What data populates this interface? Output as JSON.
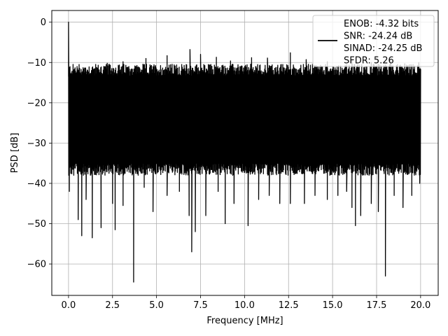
{
  "chart_data": {
    "type": "line",
    "title": "",
    "xlabel": "Frequency [MHz]",
    "ylabel": "PSD [dB]",
    "xlim": [
      -0.95,
      21.0
    ],
    "ylim": [
      -67.8,
      2.9
    ],
    "xticks": [
      0.0,
      2.5,
      5.0,
      7.5,
      10.0,
      12.5,
      15.0,
      17.5,
      20.0
    ],
    "xtick_labels": [
      "0.0",
      "2.5",
      "5.0",
      "7.5",
      "10.0",
      "12.5",
      "15.0",
      "17.5",
      "20.0"
    ],
    "yticks": [
      0,
      -10,
      -20,
      -30,
      -40,
      -50,
      -60
    ],
    "ytick_labels": [
      "0",
      "−10",
      "−20",
      "−30",
      "−40",
      "−50",
      "−60"
    ],
    "grid": true,
    "legend_location": "upper right",
    "line_color": "#000000",
    "series": [
      {
        "legend_lines": [
          "ENOB: -4.32 bits",
          "SNR: -24.24 dB",
          "SINAD: -24.25 dB",
          "SFDR: 5.26"
        ],
        "peak": {
          "x": 0.0,
          "y": 0.0
        },
        "band": {
          "x_start": 0.0,
          "x_end": 20.0,
          "upper_envelope": -12.5,
          "lower_envelope": -35.0
        },
        "spikes_up": [
          {
            "x": 0.6,
            "y": -10.5
          },
          {
            "x": 1.3,
            "y": -12.0
          },
          {
            "x": 2.2,
            "y": -10.2
          },
          {
            "x": 3.1,
            "y": -9.8
          },
          {
            "x": 4.4,
            "y": -9.0
          },
          {
            "x": 5.6,
            "y": -8.3
          },
          {
            "x": 6.9,
            "y": -6.8
          },
          {
            "x": 7.5,
            "y": -8.0
          },
          {
            "x": 8.4,
            "y": -8.7
          },
          {
            "x": 9.2,
            "y": -9.6
          },
          {
            "x": 10.4,
            "y": -8.8
          },
          {
            "x": 11.3,
            "y": -8.9
          },
          {
            "x": 12.6,
            "y": -7.6
          },
          {
            "x": 13.5,
            "y": -9.3
          },
          {
            "x": 14.7,
            "y": -9.8
          },
          {
            "x": 16.1,
            "y": -9.5
          },
          {
            "x": 17.2,
            "y": -10.0
          },
          {
            "x": 18.3,
            "y": -9.6
          },
          {
            "x": 19.1,
            "y": -10.3
          },
          {
            "x": 19.9,
            "y": -10.0
          }
        ],
        "spikes_down": [
          {
            "x": 0.05,
            "y": -42.0
          },
          {
            "x": 0.3,
            "y": -38.0
          },
          {
            "x": 0.55,
            "y": -49.0
          },
          {
            "x": 0.75,
            "y": -53.0
          },
          {
            "x": 1.0,
            "y": -44.0
          },
          {
            "x": 1.35,
            "y": -53.5
          },
          {
            "x": 1.85,
            "y": -51.0
          },
          {
            "x": 2.5,
            "y": -45.0
          },
          {
            "x": 2.65,
            "y": -51.5
          },
          {
            "x": 3.1,
            "y": -45.5
          },
          {
            "x": 3.7,
            "y": -64.5
          },
          {
            "x": 4.3,
            "y": -41.0
          },
          {
            "x": 4.8,
            "y": -47.0
          },
          {
            "x": 5.6,
            "y": -43.0
          },
          {
            "x": 6.3,
            "y": -42.0
          },
          {
            "x": 6.85,
            "y": -48.0
          },
          {
            "x": 7.0,
            "y": -57.0
          },
          {
            "x": 7.2,
            "y": -52.0
          },
          {
            "x": 7.8,
            "y": -48.0
          },
          {
            "x": 8.5,
            "y": -42.0
          },
          {
            "x": 8.9,
            "y": -50.0
          },
          {
            "x": 9.4,
            "y": -45.0
          },
          {
            "x": 10.2,
            "y": -50.5
          },
          {
            "x": 10.8,
            "y": -44.0
          },
          {
            "x": 11.4,
            "y": -43.0
          },
          {
            "x": 12.0,
            "y": -45.0
          },
          {
            "x": 12.6,
            "y": -45.0
          },
          {
            "x": 13.4,
            "y": -45.0
          },
          {
            "x": 14.0,
            "y": -43.0
          },
          {
            "x": 14.7,
            "y": -44.0
          },
          {
            "x": 15.3,
            "y": -43.0
          },
          {
            "x": 15.8,
            "y": -42.0
          },
          {
            "x": 16.1,
            "y": -46.0
          },
          {
            "x": 16.3,
            "y": -50.5
          },
          {
            "x": 16.6,
            "y": -48.0
          },
          {
            "x": 17.2,
            "y": -45.0
          },
          {
            "x": 17.6,
            "y": -47.0
          },
          {
            "x": 18.0,
            "y": -63.0
          },
          {
            "x": 18.5,
            "y": -43.0
          },
          {
            "x": 19.0,
            "y": -46.0
          },
          {
            "x": 19.5,
            "y": -43.0
          },
          {
            "x": 19.95,
            "y": -40.0
          }
        ]
      }
    ]
  }
}
